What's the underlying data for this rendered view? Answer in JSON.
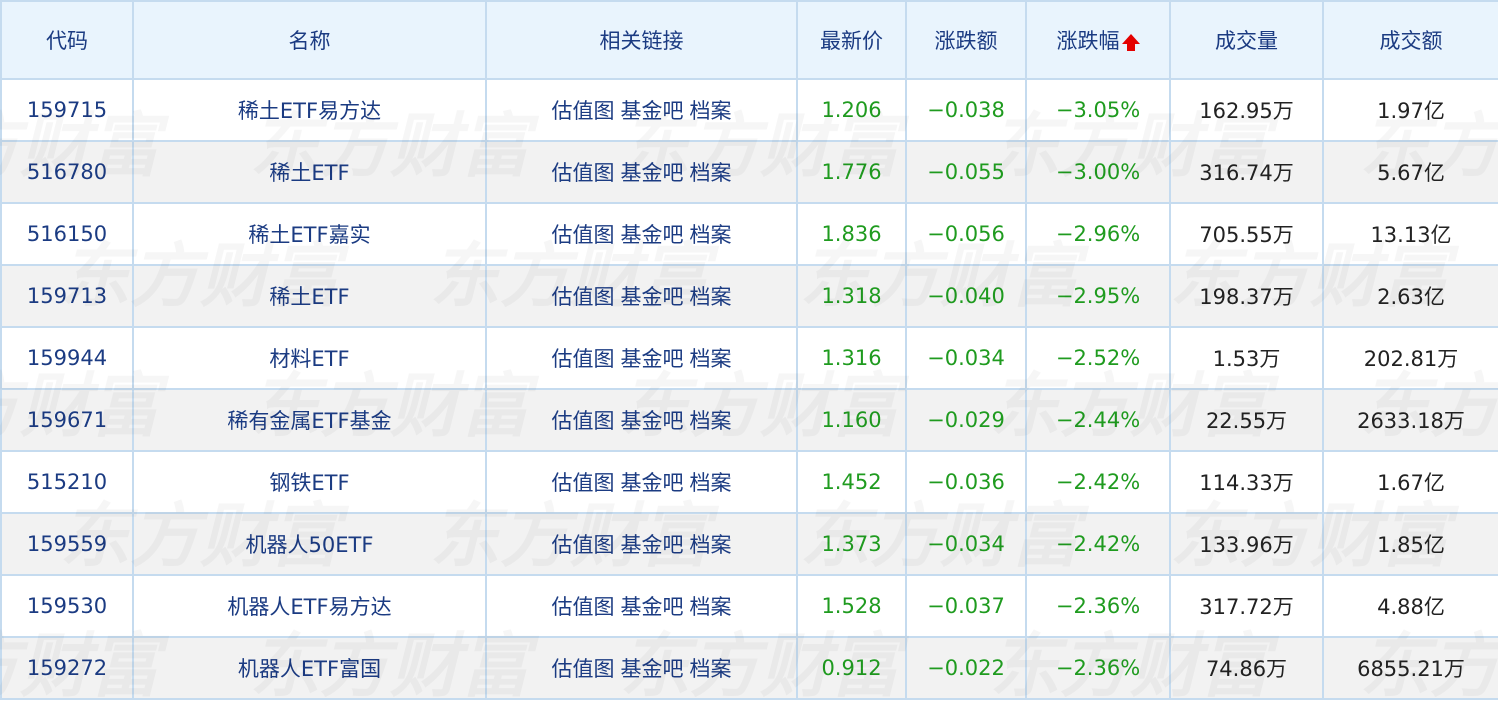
{
  "columns": [
    "代码",
    "名称",
    "相关链接",
    "最新价",
    "涨跌额",
    "涨跌幅",
    "成交量",
    "成交额"
  ],
  "sort": {
    "column": "涨跌幅",
    "direction": "up-arrow-icon",
    "color": "#e40000"
  },
  "links": [
    "估值图",
    "基金吧",
    "档案"
  ],
  "watermark": "东方财富",
  "colors": {
    "header_bg": "#e9f4fd",
    "text_blue": "#1b3b82",
    "down_green": "#1f9b1f",
    "border": "#c5dbef"
  },
  "rows": [
    {
      "code": "159715",
      "name": "稀土ETF易方达",
      "price": "1.206",
      "change": "−0.038",
      "pct": "−3.05%",
      "volume": "162.95万",
      "amount": "1.97亿"
    },
    {
      "code": "516780",
      "name": "稀土ETF",
      "price": "1.776",
      "change": "−0.055",
      "pct": "−3.00%",
      "volume": "316.74万",
      "amount": "5.67亿"
    },
    {
      "code": "516150",
      "name": "稀土ETF嘉实",
      "price": "1.836",
      "change": "−0.056",
      "pct": "−2.96%",
      "volume": "705.55万",
      "amount": "13.13亿"
    },
    {
      "code": "159713",
      "name": "稀土ETF",
      "price": "1.318",
      "change": "−0.040",
      "pct": "−2.95%",
      "volume": "198.37万",
      "amount": "2.63亿"
    },
    {
      "code": "159944",
      "name": "材料ETF",
      "price": "1.316",
      "change": "−0.034",
      "pct": "−2.52%",
      "volume": "1.53万",
      "amount": "202.81万"
    },
    {
      "code": "159671",
      "name": "稀有金属ETF基金",
      "price": "1.160",
      "change": "−0.029",
      "pct": "−2.44%",
      "volume": "22.55万",
      "amount": "2633.18万"
    },
    {
      "code": "515210",
      "name": "钢铁ETF",
      "price": "1.452",
      "change": "−0.036",
      "pct": "−2.42%",
      "volume": "114.33万",
      "amount": "1.67亿"
    },
    {
      "code": "159559",
      "name": "机器人50ETF",
      "price": "1.373",
      "change": "−0.034",
      "pct": "−2.42%",
      "volume": "133.96万",
      "amount": "1.85亿"
    },
    {
      "code": "159530",
      "name": "机器人ETF易方达",
      "price": "1.528",
      "change": "−0.037",
      "pct": "−2.36%",
      "volume": "317.72万",
      "amount": "4.88亿"
    },
    {
      "code": "159272",
      "name": "机器人ETF富国",
      "price": "0.912",
      "change": "−0.022",
      "pct": "−2.36%",
      "volume": "74.86万",
      "amount": "6855.21万"
    }
  ]
}
